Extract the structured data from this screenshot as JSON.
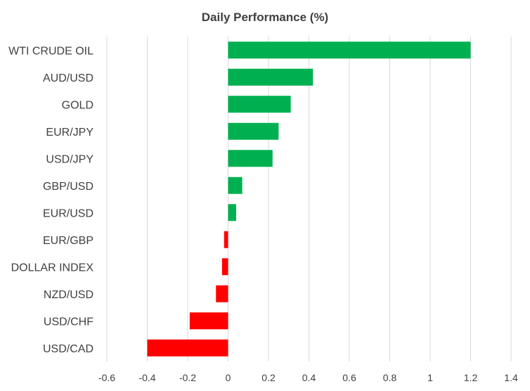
{
  "chart_data": {
    "type": "bar",
    "orientation": "horizontal",
    "title": "Daily Performance (%)",
    "xlabel": "",
    "ylabel": "",
    "categories": [
      "WTI CRUDE OIL",
      "AUD/USD",
      "GOLD",
      "EUR/JPY",
      "USD/JPY",
      "GBP/USD",
      "EUR/USD",
      "EUR/GBP",
      "DOLLAR INDEX",
      "NZD/USD",
      "USD/CHF",
      "USD/CAD"
    ],
    "values": [
      1.2,
      0.42,
      0.31,
      0.25,
      0.22,
      0.07,
      0.04,
      -0.02,
      -0.03,
      -0.06,
      -0.19,
      -0.4
    ],
    "xlim": [
      -0.6,
      1.4
    ],
    "xticks": [
      "-0.6",
      "-0.4",
      "-0.2",
      "0",
      "0.2",
      "0.4",
      "0.6",
      "0.8",
      "1",
      "1.2",
      "1.4"
    ],
    "grid": true,
    "legend": "none",
    "colors": {
      "positive": "#00b050",
      "negative": "#ff0000"
    }
  }
}
